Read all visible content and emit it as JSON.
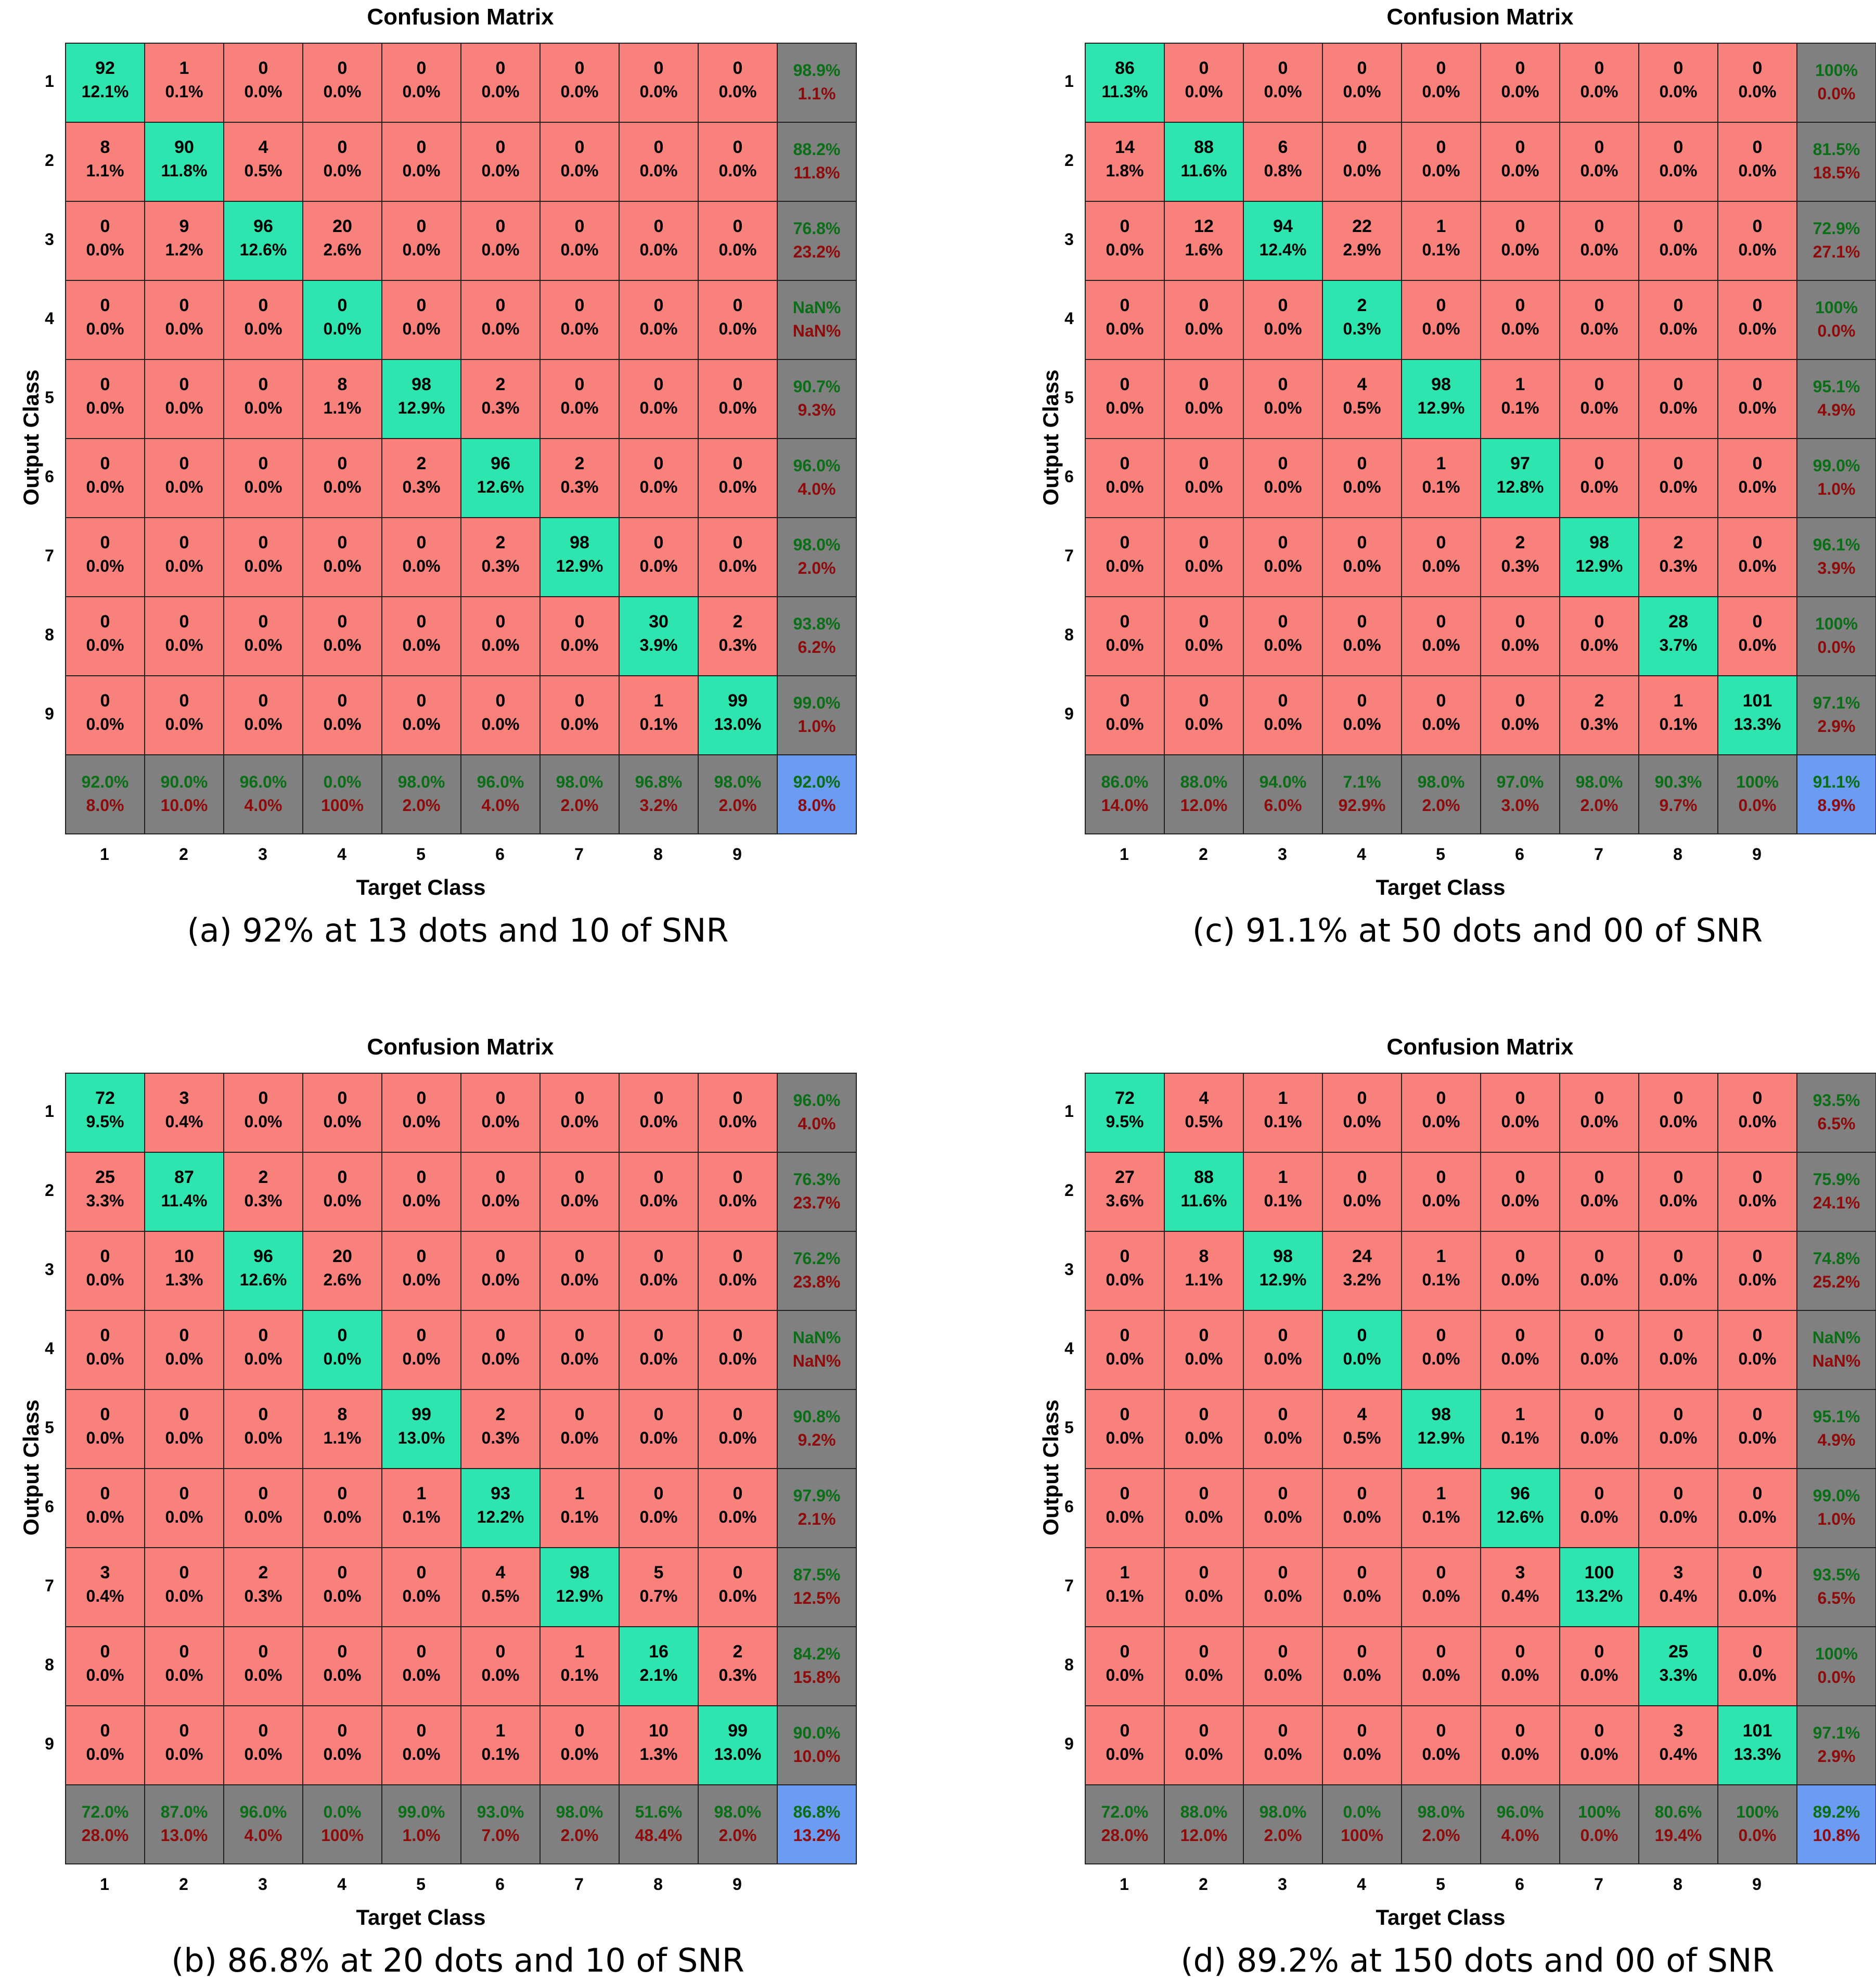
{
  "chart_data": [
    {
      "type": "heatmap",
      "title": "Confusion Matrix",
      "xlabel": "Target Class",
      "ylabel": "Output Class",
      "caption": "(a) 92% at 13 dots and 10 of SNR",
      "x_ticks": [
        "1",
        "2",
        "3",
        "4",
        "5",
        "6",
        "7",
        "8",
        "9"
      ],
      "y_ticks": [
        "1",
        "2",
        "3",
        "4",
        "5",
        "6",
        "7",
        "8",
        "9"
      ],
      "counts": [
        [
          92,
          1,
          0,
          0,
          0,
          0,
          0,
          0,
          0
        ],
        [
          8,
          90,
          4,
          0,
          0,
          0,
          0,
          0,
          0
        ],
        [
          0,
          9,
          96,
          20,
          0,
          0,
          0,
          0,
          0
        ],
        [
          0,
          0,
          0,
          0,
          0,
          0,
          0,
          0,
          0
        ],
        [
          0,
          0,
          0,
          8,
          98,
          2,
          0,
          0,
          0
        ],
        [
          0,
          0,
          0,
          0,
          2,
          96,
          2,
          0,
          0
        ],
        [
          0,
          0,
          0,
          0,
          0,
          2,
          98,
          0,
          0
        ],
        [
          0,
          0,
          0,
          0,
          0,
          0,
          0,
          30,
          2
        ],
        [
          0,
          0,
          0,
          0,
          0,
          0,
          0,
          1,
          99
        ]
      ],
      "percents": [
        [
          "12.1%",
          "0.1%",
          "0.0%",
          "0.0%",
          "0.0%",
          "0.0%",
          "0.0%",
          "0.0%",
          "0.0%"
        ],
        [
          "1.1%",
          "11.8%",
          "0.5%",
          "0.0%",
          "0.0%",
          "0.0%",
          "0.0%",
          "0.0%",
          "0.0%"
        ],
        [
          "0.0%",
          "1.2%",
          "12.6%",
          "2.6%",
          "0.0%",
          "0.0%",
          "0.0%",
          "0.0%",
          "0.0%"
        ],
        [
          "0.0%",
          "0.0%",
          "0.0%",
          "0.0%",
          "0.0%",
          "0.0%",
          "0.0%",
          "0.0%",
          "0.0%"
        ],
        [
          "0.0%",
          "0.0%",
          "0.0%",
          "1.1%",
          "12.9%",
          "0.3%",
          "0.0%",
          "0.0%",
          "0.0%"
        ],
        [
          "0.0%",
          "0.0%",
          "0.0%",
          "0.0%",
          "0.3%",
          "12.6%",
          "0.3%",
          "0.0%",
          "0.0%"
        ],
        [
          "0.0%",
          "0.0%",
          "0.0%",
          "0.0%",
          "0.0%",
          "0.3%",
          "12.9%",
          "0.0%",
          "0.0%"
        ],
        [
          "0.0%",
          "0.0%",
          "0.0%",
          "0.0%",
          "0.0%",
          "0.0%",
          "0.0%",
          "3.9%",
          "0.3%"
        ],
        [
          "0.0%",
          "0.0%",
          "0.0%",
          "0.0%",
          "0.0%",
          "0.0%",
          "0.0%",
          "0.1%",
          "13.0%"
        ]
      ],
      "row_summary": [
        [
          "98.9%",
          "1.1%"
        ],
        [
          "88.2%",
          "11.8%"
        ],
        [
          "76.8%",
          "23.2%"
        ],
        [
          "NaN%",
          "NaN%"
        ],
        [
          "90.7%",
          "9.3%"
        ],
        [
          "96.0%",
          "4.0%"
        ],
        [
          "98.0%",
          "2.0%"
        ],
        [
          "93.8%",
          "6.2%"
        ],
        [
          "99.0%",
          "1.0%"
        ]
      ],
      "col_summary": [
        [
          "92.0%",
          "8.0%"
        ],
        [
          "90.0%",
          "10.0%"
        ],
        [
          "96.0%",
          "4.0%"
        ],
        [
          "0.0%",
          "100%"
        ],
        [
          "98.0%",
          "2.0%"
        ],
        [
          "96.0%",
          "4.0%"
        ],
        [
          "98.0%",
          "2.0%"
        ],
        [
          "96.8%",
          "3.2%"
        ],
        [
          "98.0%",
          "2.0%"
        ]
      ],
      "overall": [
        "92.0%",
        "8.0%"
      ]
    },
    {
      "type": "heatmap",
      "title": "Confusion Matrix",
      "xlabel": "Target Class",
      "ylabel": "Output Class",
      "caption": "(c) 91.1% at 50 dots and 00 of SNR",
      "x_ticks": [
        "1",
        "2",
        "3",
        "4",
        "5",
        "6",
        "7",
        "8",
        "9"
      ],
      "y_ticks": [
        "1",
        "2",
        "3",
        "4",
        "5",
        "6",
        "7",
        "8",
        "9"
      ],
      "counts": [
        [
          86,
          0,
          0,
          0,
          0,
          0,
          0,
          0,
          0
        ],
        [
          14,
          88,
          6,
          0,
          0,
          0,
          0,
          0,
          0
        ],
        [
          0,
          12,
          94,
          22,
          1,
          0,
          0,
          0,
          0
        ],
        [
          0,
          0,
          0,
          2,
          0,
          0,
          0,
          0,
          0
        ],
        [
          0,
          0,
          0,
          4,
          98,
          1,
          0,
          0,
          0
        ],
        [
          0,
          0,
          0,
          0,
          1,
          97,
          0,
          0,
          0
        ],
        [
          0,
          0,
          0,
          0,
          0,
          2,
          98,
          2,
          0
        ],
        [
          0,
          0,
          0,
          0,
          0,
          0,
          0,
          28,
          0
        ],
        [
          0,
          0,
          0,
          0,
          0,
          0,
          2,
          1,
          101
        ]
      ],
      "percents": [
        [
          "11.3%",
          "0.0%",
          "0.0%",
          "0.0%",
          "0.0%",
          "0.0%",
          "0.0%",
          "0.0%",
          "0.0%"
        ],
        [
          "1.8%",
          "11.6%",
          "0.8%",
          "0.0%",
          "0.0%",
          "0.0%",
          "0.0%",
          "0.0%",
          "0.0%"
        ],
        [
          "0.0%",
          "1.6%",
          "12.4%",
          "2.9%",
          "0.1%",
          "0.0%",
          "0.0%",
          "0.0%",
          "0.0%"
        ],
        [
          "0.0%",
          "0.0%",
          "0.0%",
          "0.3%",
          "0.0%",
          "0.0%",
          "0.0%",
          "0.0%",
          "0.0%"
        ],
        [
          "0.0%",
          "0.0%",
          "0.0%",
          "0.5%",
          "12.9%",
          "0.1%",
          "0.0%",
          "0.0%",
          "0.0%"
        ],
        [
          "0.0%",
          "0.0%",
          "0.0%",
          "0.0%",
          "0.1%",
          "12.8%",
          "0.0%",
          "0.0%",
          "0.0%"
        ],
        [
          "0.0%",
          "0.0%",
          "0.0%",
          "0.0%",
          "0.0%",
          "0.3%",
          "12.9%",
          "0.3%",
          "0.0%"
        ],
        [
          "0.0%",
          "0.0%",
          "0.0%",
          "0.0%",
          "0.0%",
          "0.0%",
          "0.0%",
          "3.7%",
          "0.0%"
        ],
        [
          "0.0%",
          "0.0%",
          "0.0%",
          "0.0%",
          "0.0%",
          "0.0%",
          "0.3%",
          "0.1%",
          "13.3%"
        ]
      ],
      "row_summary": [
        [
          "100%",
          "0.0%"
        ],
        [
          "81.5%",
          "18.5%"
        ],
        [
          "72.9%",
          "27.1%"
        ],
        [
          "100%",
          "0.0%"
        ],
        [
          "95.1%",
          "4.9%"
        ],
        [
          "99.0%",
          "1.0%"
        ],
        [
          "96.1%",
          "3.9%"
        ],
        [
          "100%",
          "0.0%"
        ],
        [
          "97.1%",
          "2.9%"
        ]
      ],
      "col_summary": [
        [
          "86.0%",
          "14.0%"
        ],
        [
          "88.0%",
          "12.0%"
        ],
        [
          "94.0%",
          "6.0%"
        ],
        [
          "7.1%",
          "92.9%"
        ],
        [
          "98.0%",
          "2.0%"
        ],
        [
          "97.0%",
          "3.0%"
        ],
        [
          "98.0%",
          "2.0%"
        ],
        [
          "90.3%",
          "9.7%"
        ],
        [
          "100%",
          "0.0%"
        ]
      ],
      "overall": [
        "91.1%",
        "8.9%"
      ]
    },
    {
      "type": "heatmap",
      "title": "Confusion Matrix",
      "xlabel": "Target Class",
      "ylabel": "Output Class",
      "caption": "(b) 86.8% at 20 dots and 10 of SNR",
      "x_ticks": [
        "1",
        "2",
        "3",
        "4",
        "5",
        "6",
        "7",
        "8",
        "9"
      ],
      "y_ticks": [
        "1",
        "2",
        "3",
        "4",
        "5",
        "6",
        "7",
        "8",
        "9"
      ],
      "counts": [
        [
          72,
          3,
          0,
          0,
          0,
          0,
          0,
          0,
          0
        ],
        [
          25,
          87,
          2,
          0,
          0,
          0,
          0,
          0,
          0
        ],
        [
          0,
          10,
          96,
          20,
          0,
          0,
          0,
          0,
          0
        ],
        [
          0,
          0,
          0,
          0,
          0,
          0,
          0,
          0,
          0
        ],
        [
          0,
          0,
          0,
          8,
          99,
          2,
          0,
          0,
          0
        ],
        [
          0,
          0,
          0,
          0,
          1,
          93,
          1,
          0,
          0
        ],
        [
          3,
          0,
          2,
          0,
          0,
          4,
          98,
          5,
          0
        ],
        [
          0,
          0,
          0,
          0,
          0,
          0,
          1,
          16,
          2
        ],
        [
          0,
          0,
          0,
          0,
          0,
          1,
          0,
          10,
          99
        ]
      ],
      "percents": [
        [
          "9.5%",
          "0.4%",
          "0.0%",
          "0.0%",
          "0.0%",
          "0.0%",
          "0.0%",
          "0.0%",
          "0.0%"
        ],
        [
          "3.3%",
          "11.4%",
          "0.3%",
          "0.0%",
          "0.0%",
          "0.0%",
          "0.0%",
          "0.0%",
          "0.0%"
        ],
        [
          "0.0%",
          "1.3%",
          "12.6%",
          "2.6%",
          "0.0%",
          "0.0%",
          "0.0%",
          "0.0%",
          "0.0%"
        ],
        [
          "0.0%",
          "0.0%",
          "0.0%",
          "0.0%",
          "0.0%",
          "0.0%",
          "0.0%",
          "0.0%",
          "0.0%"
        ],
        [
          "0.0%",
          "0.0%",
          "0.0%",
          "1.1%",
          "13.0%",
          "0.3%",
          "0.0%",
          "0.0%",
          "0.0%"
        ],
        [
          "0.0%",
          "0.0%",
          "0.0%",
          "0.0%",
          "0.1%",
          "12.2%",
          "0.1%",
          "0.0%",
          "0.0%"
        ],
        [
          "0.4%",
          "0.0%",
          "0.3%",
          "0.0%",
          "0.0%",
          "0.5%",
          "12.9%",
          "0.7%",
          "0.0%"
        ],
        [
          "0.0%",
          "0.0%",
          "0.0%",
          "0.0%",
          "0.0%",
          "0.0%",
          "0.1%",
          "2.1%",
          "0.3%"
        ],
        [
          "0.0%",
          "0.0%",
          "0.0%",
          "0.0%",
          "0.0%",
          "0.1%",
          "0.0%",
          "1.3%",
          "13.0%"
        ]
      ],
      "row_summary": [
        [
          "96.0%",
          "4.0%"
        ],
        [
          "76.3%",
          "23.7%"
        ],
        [
          "76.2%",
          "23.8%"
        ],
        [
          "NaN%",
          "NaN%"
        ],
        [
          "90.8%",
          "9.2%"
        ],
        [
          "97.9%",
          "2.1%"
        ],
        [
          "87.5%",
          "12.5%"
        ],
        [
          "84.2%",
          "15.8%"
        ],
        [
          "90.0%",
          "10.0%"
        ]
      ],
      "col_summary": [
        [
          "72.0%",
          "28.0%"
        ],
        [
          "87.0%",
          "13.0%"
        ],
        [
          "96.0%",
          "4.0%"
        ],
        [
          "0.0%",
          "100%"
        ],
        [
          "99.0%",
          "1.0%"
        ],
        [
          "93.0%",
          "7.0%"
        ],
        [
          "98.0%",
          "2.0%"
        ],
        [
          "51.6%",
          "48.4%"
        ],
        [
          "98.0%",
          "2.0%"
        ]
      ],
      "overall": [
        "86.8%",
        "13.2%"
      ]
    },
    {
      "type": "heatmap",
      "title": "Confusion Matrix",
      "xlabel": "Target Class",
      "ylabel": "Output Class",
      "caption": "(d) 89.2% at 150 dots and 00 of SNR",
      "x_ticks": [
        "1",
        "2",
        "3",
        "4",
        "5",
        "6",
        "7",
        "8",
        "9"
      ],
      "y_ticks": [
        "1",
        "2",
        "3",
        "4",
        "5",
        "6",
        "7",
        "8",
        "9"
      ],
      "counts": [
        [
          72,
          4,
          1,
          0,
          0,
          0,
          0,
          0,
          0
        ],
        [
          27,
          88,
          1,
          0,
          0,
          0,
          0,
          0,
          0
        ],
        [
          0,
          8,
          98,
          24,
          1,
          0,
          0,
          0,
          0
        ],
        [
          0,
          0,
          0,
          0,
          0,
          0,
          0,
          0,
          0
        ],
        [
          0,
          0,
          0,
          4,
          98,
          1,
          0,
          0,
          0
        ],
        [
          0,
          0,
          0,
          0,
          1,
          96,
          0,
          0,
          0
        ],
        [
          1,
          0,
          0,
          0,
          0,
          3,
          100,
          3,
          0
        ],
        [
          0,
          0,
          0,
          0,
          0,
          0,
          0,
          25,
          0
        ],
        [
          0,
          0,
          0,
          0,
          0,
          0,
          0,
          3,
          101
        ]
      ],
      "percents": [
        [
          "9.5%",
          "0.5%",
          "0.1%",
          "0.0%",
          "0.0%",
          "0.0%",
          "0.0%",
          "0.0%",
          "0.0%"
        ],
        [
          "3.6%",
          "11.6%",
          "0.1%",
          "0.0%",
          "0.0%",
          "0.0%",
          "0.0%",
          "0.0%",
          "0.0%"
        ],
        [
          "0.0%",
          "1.1%",
          "12.9%",
          "3.2%",
          "0.1%",
          "0.0%",
          "0.0%",
          "0.0%",
          "0.0%"
        ],
        [
          "0.0%",
          "0.0%",
          "0.0%",
          "0.0%",
          "0.0%",
          "0.0%",
          "0.0%",
          "0.0%",
          "0.0%"
        ],
        [
          "0.0%",
          "0.0%",
          "0.0%",
          "0.5%",
          "12.9%",
          "0.1%",
          "0.0%",
          "0.0%",
          "0.0%"
        ],
        [
          "0.0%",
          "0.0%",
          "0.0%",
          "0.0%",
          "0.1%",
          "12.6%",
          "0.0%",
          "0.0%",
          "0.0%"
        ],
        [
          "0.1%",
          "0.0%",
          "0.0%",
          "0.0%",
          "0.0%",
          "0.4%",
          "13.2%",
          "0.4%",
          "0.0%"
        ],
        [
          "0.0%",
          "0.0%",
          "0.0%",
          "0.0%",
          "0.0%",
          "0.0%",
          "0.0%",
          "3.3%",
          "0.0%"
        ],
        [
          "0.0%",
          "0.0%",
          "0.0%",
          "0.0%",
          "0.0%",
          "0.0%",
          "0.0%",
          "0.4%",
          "13.3%"
        ]
      ],
      "row_summary": [
        [
          "93.5%",
          "6.5%"
        ],
        [
          "75.9%",
          "24.1%"
        ],
        [
          "74.8%",
          "25.2%"
        ],
        [
          "NaN%",
          "NaN%"
        ],
        [
          "95.1%",
          "4.9%"
        ],
        [
          "99.0%",
          "1.0%"
        ],
        [
          "93.5%",
          "6.5%"
        ],
        [
          "100%",
          "0.0%"
        ],
        [
          "97.1%",
          "2.9%"
        ]
      ],
      "col_summary": [
        [
          "72.0%",
          "28.0%"
        ],
        [
          "88.0%",
          "12.0%"
        ],
        [
          "98.0%",
          "2.0%"
        ],
        [
          "0.0%",
          "100%"
        ],
        [
          "98.0%",
          "2.0%"
        ],
        [
          "96.0%",
          "4.0%"
        ],
        [
          "100%",
          "0.0%"
        ],
        [
          "80.6%",
          "19.4%"
        ],
        [
          "100%",
          "0.0%"
        ]
      ],
      "overall": [
        "89.2%",
        "10.8%"
      ]
    }
  ]
}
